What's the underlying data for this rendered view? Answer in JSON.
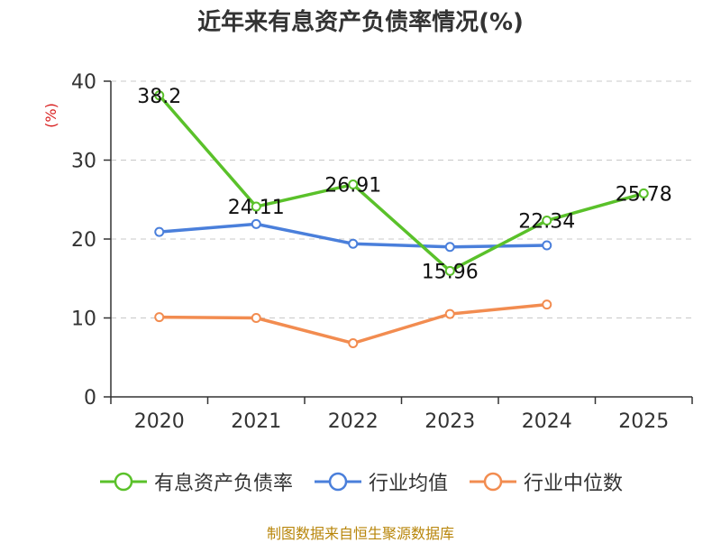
{
  "chart_data": {
    "type": "line",
    "title": "近年来有息资产负债率情况(%)",
    "ylabel": "(%)",
    "xlabel": "",
    "categories": [
      "2020",
      "2021",
      "2022",
      "2023",
      "2024",
      "2025"
    ],
    "ylim": [
      0,
      40
    ],
    "yticks": [
      0,
      10,
      20,
      30,
      40
    ],
    "grid": true,
    "legend_position": "bottom",
    "series": [
      {
        "name": "有息资产负债率",
        "color": "#5ac12a",
        "values": [
          38.2,
          24.11,
          26.91,
          15.96,
          22.34,
          25.78
        ],
        "labels": [
          "38.2",
          "24.11",
          "26.91",
          "15.96",
          "22.34",
          "25.78"
        ]
      },
      {
        "name": "行业均值",
        "color": "#4a7fdb",
        "values": [
          20.9,
          21.9,
          19.4,
          19.0,
          19.2,
          null
        ]
      },
      {
        "name": "行业中位数",
        "color": "#f28c50",
        "values": [
          10.1,
          10.0,
          6.8,
          10.5,
          11.7,
          null
        ]
      }
    ]
  },
  "source": "制图数据来自恒生聚源数据库"
}
